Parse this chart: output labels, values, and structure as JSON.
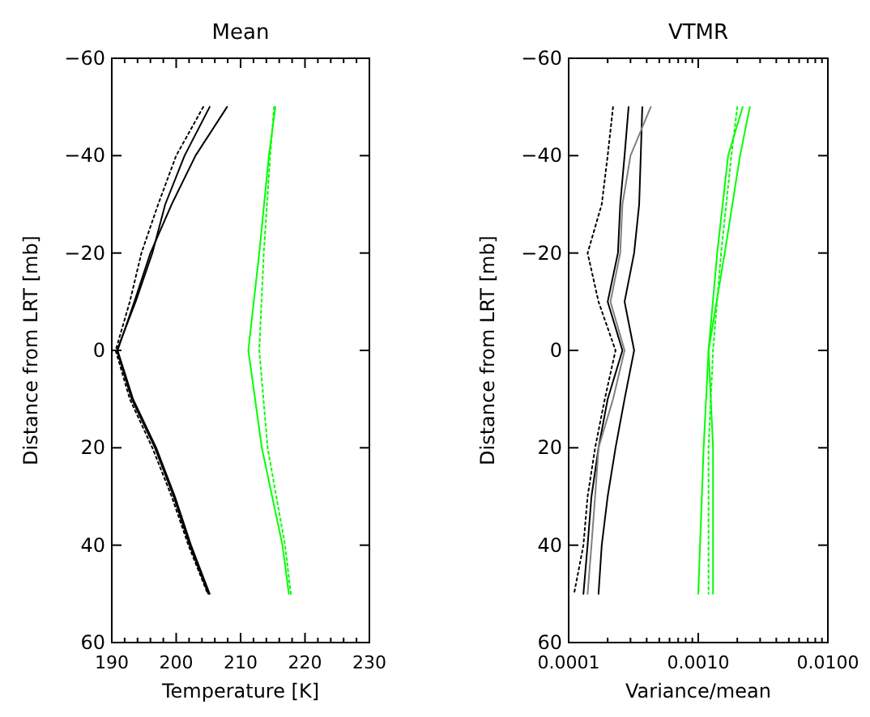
{
  "chart_data": [
    {
      "type": "line",
      "title": "Mean",
      "xlabel": "Temperature [K]",
      "ylabel": "Distance from LRT [mb]",
      "xlim": [
        190,
        230
      ],
      "xticks": [
        190,
        {
          "value": 192,
          "label": null
        },
        {
          "value": 194,
          "label": null
        },
        {
          "value": 196,
          "label": null
        },
        {
          "value": 198,
          "label": null
        },
        200,
        {
          "value": 202,
          "label": null
        },
        {
          "value": 204,
          "label": null
        },
        {
          "value": 206,
          "label": null
        },
        {
          "value": 208,
          "label": null
        },
        210,
        {
          "value": 212,
          "label": null
        },
        {
          "value": 214,
          "label": null
        },
        {
          "value": 216,
          "label": null
        },
        {
          "value": 218,
          "label": null
        },
        220,
        {
          "value": 222,
          "label": null
        },
        {
          "value": 224,
          "label": null
        },
        {
          "value": 226,
          "label": null
        },
        {
          "value": 228,
          "label": null
        },
        230
      ],
      "ylim": [
        60,
        -60
      ],
      "yticks": [
        -60,
        -40,
        -20,
        0,
        20,
        40,
        60
      ],
      "grid": false,
      "marker": "none",
      "series": [
        {
          "color": "#000000",
          "line_style": "solid",
          "x": [
            205.2,
            201.3,
            198.3,
            196.3,
            193.7,
            190.8,
            193.1,
            196.7,
            199.6,
            202.1,
            205
          ],
          "values": [
            -50,
            -40,
            -30,
            -20,
            -10,
            0,
            10,
            20,
            30,
            40,
            50
          ]
        },
        {
          "color": "#000000",
          "line_style": "solid",
          "x": [
            207.9,
            203,
            199.3,
            196,
            193.5,
            190.9,
            193.3,
            196.9,
            199.8,
            202.3,
            205.2
          ],
          "values": [
            -50,
            -40,
            -30,
            -20,
            -10,
            0,
            10,
            20,
            30,
            40,
            50
          ]
        },
        {
          "color": "#000000",
          "line_style": "dotted",
          "x": [
            204.2,
            200,
            197.2,
            194.6,
            192.8,
            190.6,
            192.8,
            196.3,
            199.3,
            201.9,
            204.9
          ],
          "values": [
            -50,
            -40,
            -30,
            -20,
            -10,
            0,
            10,
            20,
            30,
            40,
            50
          ]
        },
        {
          "color": "#00ff00",
          "line_style": "solid",
          "x": [
            215.4,
            214.4,
            212.9,
            211.2,
            213.3,
            216.5,
            217.5
          ],
          "values": [
            -50,
            -40,
            -20,
            0,
            20,
            40,
            50
          ]
        },
        {
          "color": "#00ff00",
          "line_style": "dotted",
          "x": [
            215.2,
            214.6,
            213.6,
            212.9,
            214.2,
            216.9,
            217.8
          ],
          "values": [
            -50,
            -40,
            -20,
            0,
            20,
            40,
            50
          ]
        }
      ]
    },
    {
      "type": "line",
      "title": "VTMR",
      "xlabel": "Variance/mean",
      "ylabel": "Distance from LRT [mb]",
      "log": "x",
      "xlim": [
        0.0001,
        0.01
      ],
      "xticks": [
        {
          "value": 0.0001,
          "label": "0.0001"
        },
        {
          "value": 0.0002,
          "label": null
        },
        {
          "value": 0.0003,
          "label": null
        },
        {
          "value": 0.0004,
          "label": null
        },
        {
          "value": 0.0005,
          "label": null
        },
        {
          "value": 0.0006,
          "label": null
        },
        {
          "value": 0.0007,
          "label": null
        },
        {
          "value": 0.0008,
          "label": null
        },
        {
          "value": 0.0009,
          "label": null
        },
        {
          "value": 0.001,
          "label": "0.0010"
        },
        {
          "value": 0.002,
          "label": null
        },
        {
          "value": 0.003,
          "label": null
        },
        {
          "value": 0.004,
          "label": null
        },
        {
          "value": 0.005,
          "label": null
        },
        {
          "value": 0.006,
          "label": null
        },
        {
          "value": 0.007,
          "label": null
        },
        {
          "value": 0.008,
          "label": null
        },
        {
          "value": 0.009,
          "label": null
        },
        {
          "value": 0.01,
          "label": "0.0100"
        }
      ],
      "ylim": [
        60,
        -60
      ],
      "yticks": [
        -60,
        -40,
        -20,
        0,
        20,
        40,
        60
      ],
      "grid": false,
      "marker": "none",
      "series": [
        {
          "color": "#000000",
          "line_style": "solid",
          "x": [
            0.00029,
            0.00027,
            0.00025,
            0.00024,
            0.0002,
            0.00026,
            0.0002,
            0.00017,
            0.00015,
            0.00014,
            0.00013
          ],
          "values": [
            -50,
            -40,
            -30,
            -20,
            -10,
            0,
            10,
            20,
            30,
            40,
            50
          ]
        },
        {
          "color": "#000000",
          "line_style": "solid",
          "x": [
            0.00037,
            0.00036,
            0.00035,
            0.00032,
            0.00027,
            0.00032,
            0.00027,
            0.00023,
            0.0002,
            0.00018,
            0.00017
          ],
          "values": [
            -50,
            -40,
            -30,
            -20,
            -10,
            0,
            10,
            20,
            30,
            40,
            50
          ]
        },
        {
          "color": "#808080",
          "line_style": "solid",
          "x": [
            0.00043,
            0.0003,
            0.00026,
            0.00025,
            0.00021,
            0.00027,
            0.00022,
            0.00017,
            0.00016,
            0.00015,
            0.00014
          ],
          "values": [
            -50,
            -40,
            -30,
            -20,
            -10,
            0,
            10,
            20,
            30,
            40,
            50
          ]
        },
        {
          "color": "#000000",
          "line_style": "dotted",
          "x": [
            0.00022,
            0.0002,
            0.00018,
            0.00014,
            0.00017,
            0.00023,
            0.00019,
            0.00016,
            0.00014,
            0.00013,
            0.00011
          ],
          "values": [
            -50,
            -40,
            -30,
            -20,
            -10,
            0,
            10,
            20,
            30,
            40,
            50
          ]
        },
        {
          "color": "#00ff00",
          "line_style": "solid",
          "x": [
            0.0022,
            0.0017,
            0.0014,
            0.0012,
            0.0011,
            0.001
          ],
          "values": [
            -50,
            -40,
            -20,
            0,
            20,
            50
          ]
        },
        {
          "color": "#00ff00",
          "line_style": "solid",
          "x": [
            0.0025,
            0.0021,
            0.0016,
            0.0012,
            0.0013,
            0.0013
          ],
          "values": [
            -50,
            -40,
            -20,
            0,
            20,
            50
          ]
        },
        {
          "color": "#00ff00",
          "line_style": "dotted",
          "x": [
            0.002,
            0.0018,
            0.0015,
            0.0013,
            0.0012,
            0.0012
          ],
          "values": [
            -50,
            -40,
            -20,
            0,
            20,
            50
          ]
        }
      ]
    }
  ]
}
